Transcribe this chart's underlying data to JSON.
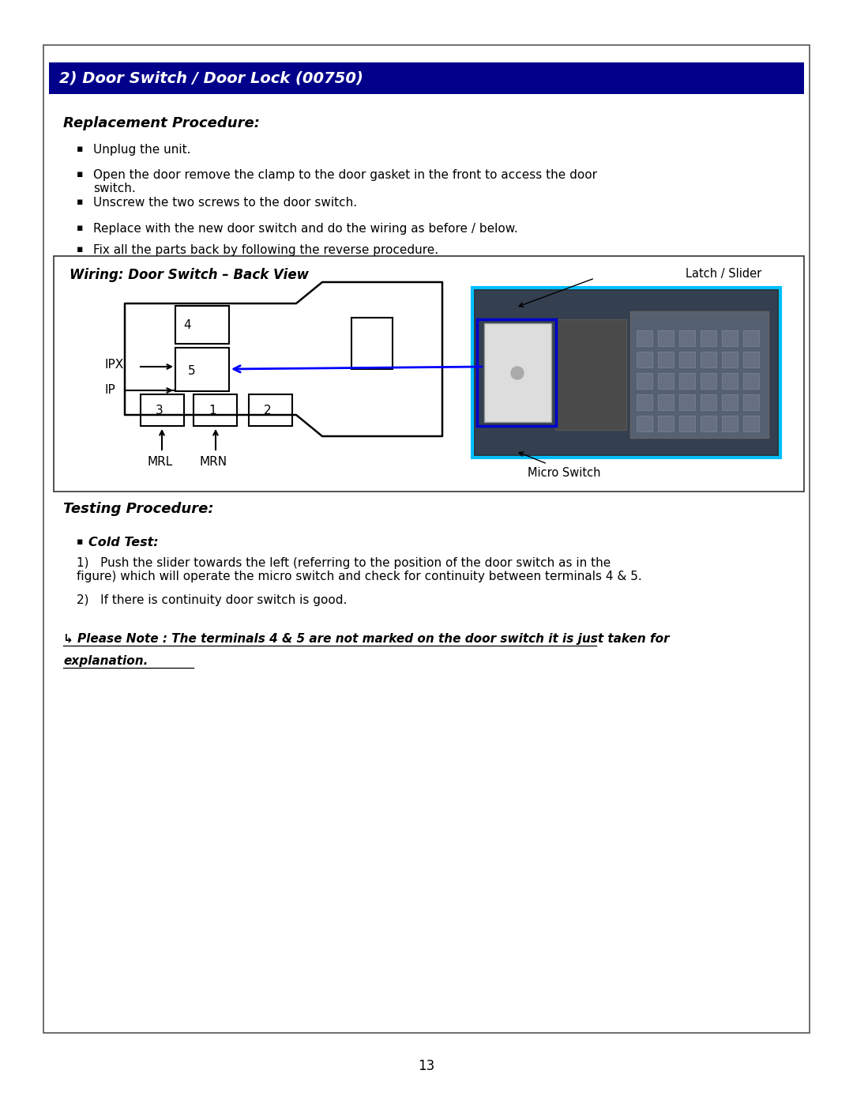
{
  "page_bg": "#ffffff",
  "header_bg": "#00008B",
  "header_text": "2) Door Switch / Door Lock (00750)",
  "header_text_color": "#ffffff",
  "replacement_title": "Replacement Procedure:",
  "bullets": [
    "Unplug the unit.",
    "Open the door remove the clamp to the door gasket in the front to access the door\nswitch.",
    "Unscrew the two screws to the door switch.",
    "Replace with the new door switch and do the wiring as before / below.",
    "Fix all the parts back by following the reverse procedure."
  ],
  "wiring_title": "Wiring: Door Switch – Back View",
  "latch_label": "Latch / Slider",
  "micro_switch_label": "Micro Switch",
  "ipx_label": "IPX",
  "ip_label": "IP",
  "mrl_label": "MRL",
  "mrn_label": "MRN",
  "testing_title": "Testing Procedure:",
  "cold_test_label": "Cold Test:",
  "cold_test_step1": "1)   Push the slider towards the left (referring to the position of the door switch as in the\nfigure) which will operate the micro switch and check for continuity between terminals 4 & 5.",
  "cold_test_step2": "2)   If there is continuity door switch is good.",
  "please_note_line1": "↳ Please Note : The terminals 4 & 5 are not marked on the door switch it is just taken for",
  "please_note_line2": "explanation.",
  "page_number": "13",
  "outer_border_color": "#555555",
  "diagram_border_color": "#333333",
  "blue_arrow_color": "#0000FF",
  "cyan_rect_color": "#00BFFF"
}
